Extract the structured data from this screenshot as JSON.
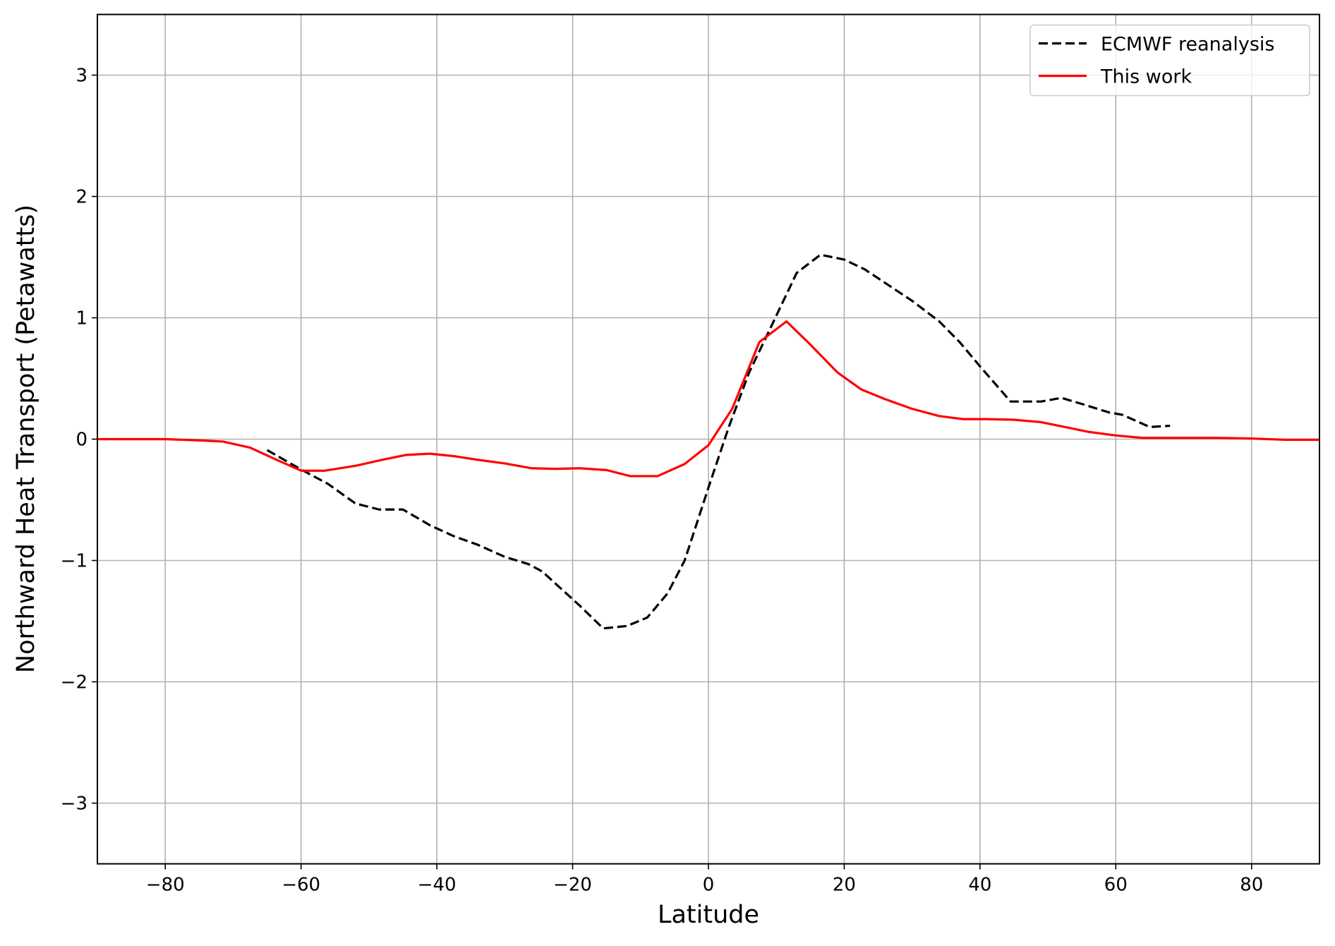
{
  "chart_data": {
    "type": "line",
    "xlabel": "Latitude",
    "ylabel": "Northward Heat Transport (Petawatts)",
    "xlim": [
      -90,
      90
    ],
    "ylim": [
      -3.5,
      3.5
    ],
    "xticks": [
      {
        "value": -80,
        "label": "−80"
      },
      {
        "value": -60,
        "label": "−60"
      },
      {
        "value": -40,
        "label": "−40"
      },
      {
        "value": -20,
        "label": "−20"
      },
      0,
      20,
      40,
      60,
      80
    ],
    "yticks": [
      {
        "value": -3,
        "label": "−3"
      },
      {
        "value": -2,
        "label": "−2"
      },
      {
        "value": -1,
        "label": "−1"
      },
      0,
      1,
      2,
      3
    ],
    "grid": true,
    "legend": "upper right",
    "series": [
      {
        "name": "ECMWF reanalysis",
        "color": "#000000",
        "linestyle": "dashed",
        "x": [
          -65,
          -60,
          -56,
          -52,
          -48.5,
          -45,
          -41,
          -37.5,
          -34,
          -30,
          -26.5,
          -24.5,
          -19,
          -15.5,
          -12,
          -9,
          -6,
          -3.5,
          0,
          3,
          6,
          9,
          13,
          16.5,
          20,
          23,
          26.5,
          30,
          34,
          37,
          40,
          44.5,
          49,
          52,
          55,
          59,
          61,
          65,
          68
        ],
        "values": [
          -0.09,
          -0.25,
          -0.37,
          -0.53,
          -0.58,
          -0.58,
          -0.71,
          -0.8,
          -0.87,
          -0.97,
          -1.03,
          -1.09,
          -1.37,
          -1.56,
          -1.54,
          -1.47,
          -1.27,
          -1.0,
          -0.4,
          0.1,
          0.55,
          0.9,
          1.37,
          1.52,
          1.48,
          1.4,
          1.27,
          1.14,
          0.97,
          0.8,
          0.6,
          0.31,
          0.31,
          0.34,
          0.29,
          0.22,
          0.2,
          0.1,
          0.11
        ]
      },
      {
        "name": "This work",
        "color": "#ff0000",
        "linestyle": "solid",
        "x": [
          -90,
          -80,
          -75,
          -71.5,
          -67.5,
          -64,
          -60,
          -56.5,
          -52,
          -48,
          -44.5,
          -41,
          -37.5,
          -34,
          -30,
          -26,
          -22.5,
          -19,
          -15,
          -11.5,
          -7.5,
          -3.5,
          0,
          3.5,
          7.5,
          11.5,
          15,
          19,
          22.5,
          26,
          30,
          34,
          37.5,
          41,
          45,
          49,
          52.5,
          56,
          60,
          64,
          70,
          75,
          80,
          85,
          90
        ],
        "values": [
          0,
          0,
          -0.01,
          -0.02,
          -0.07,
          -0.16,
          -0.26,
          -0.26,
          -0.22,
          -0.17,
          -0.13,
          -0.12,
          -0.14,
          -0.17,
          -0.2,
          -0.24,
          -0.245,
          -0.24,
          -0.255,
          -0.305,
          -0.305,
          -0.205,
          -0.05,
          0.25,
          0.8,
          0.97,
          0.78,
          0.55,
          0.41,
          0.33,
          0.25,
          0.19,
          0.165,
          0.165,
          0.16,
          0.14,
          0.1,
          0.06,
          0.03,
          0.01,
          0.01,
          0.01,
          0.005,
          -0.005,
          -0.005
        ]
      }
    ]
  }
}
